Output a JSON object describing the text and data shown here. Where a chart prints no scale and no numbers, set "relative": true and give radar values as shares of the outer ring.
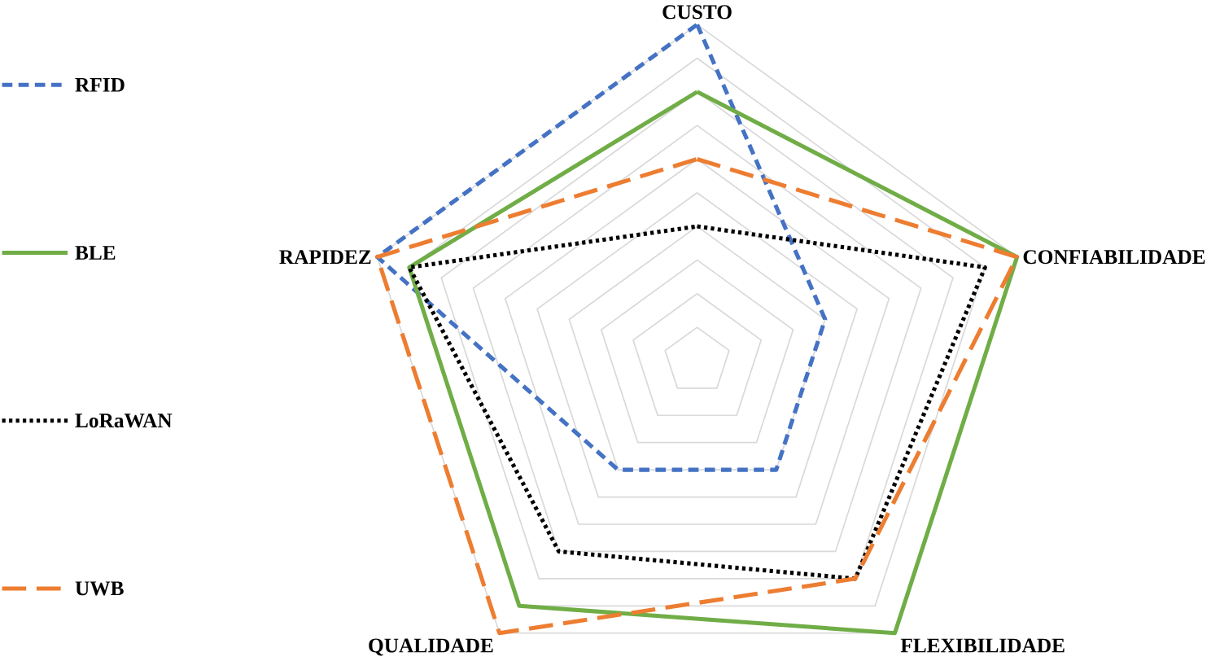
{
  "chart_data": {
    "type": "radar",
    "relative": true,
    "categories": [
      "CUSTO",
      "CONFIABILIDADE",
      "FLEXIBILIDADE",
      "QUALIDADE",
      "RAPIDEZ"
    ],
    "series": [
      {
        "name": "RFID",
        "color": "#4472c4",
        "line_style": "dashed",
        "values": [
          1.0,
          0.4,
          0.4,
          0.4,
          1.0
        ]
      },
      {
        "name": "BLE",
        "color": "#70ad47",
        "line_style": "solid",
        "values": [
          0.8,
          1.0,
          1.0,
          0.9,
          0.9
        ]
      },
      {
        "name": "LoRaWAN",
        "color": "#000000",
        "line_style": "dotted",
        "values": [
          0.4,
          0.9,
          0.8,
          0.7,
          0.9
        ]
      },
      {
        "name": "UWB",
        "color": "#ed7d31",
        "line_style": "dashed",
        "values": [
          0.6,
          1.0,
          0.8,
          1.0,
          1.0
        ]
      }
    ],
    "grid": true,
    "legend": "left",
    "marker": "none"
  }
}
